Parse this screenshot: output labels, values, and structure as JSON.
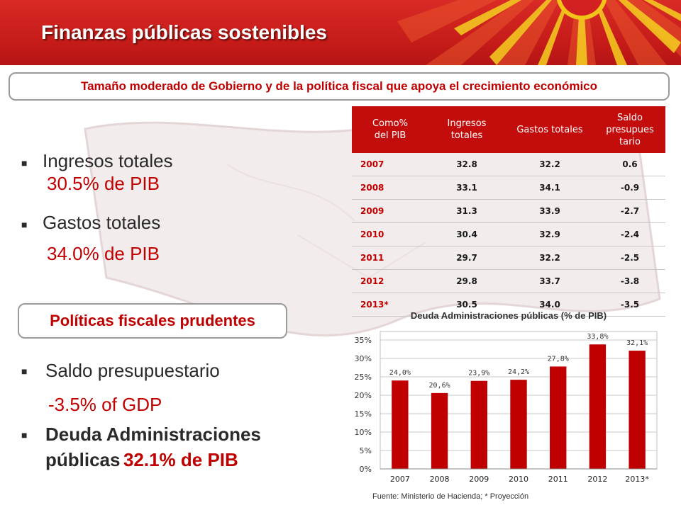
{
  "header": {
    "title": "Finanzas públicas sostenibles"
  },
  "subtitle": "Tamaño moderado de Gobierno y de la política fiscal que apoya el crecimiento económico",
  "bullets_top": [
    {
      "label": "Ingresos totales",
      "value": "30.5% de PIB"
    },
    {
      "label": "Gastos totales",
      "value": "34.0% de PIB"
    }
  ],
  "section_box": "Políticas fiscales prudentes",
  "bullets_bottom": [
    {
      "label": "Saldo presupuestario",
      "value": "-3.5% of GDP"
    },
    {
      "label_line1": "Deuda Administraciones",
      "label_line2": "públicas",
      "value": "32.1% de PIB"
    }
  ],
  "table": {
    "headers": [
      "Como%\ndel PIB",
      "Ingresos\ntotales",
      "Gastos totales",
      "Saldo\npresupues\ntario"
    ],
    "rows": [
      [
        "2007",
        "32.8",
        "32.2",
        "0.6"
      ],
      [
        "2008",
        "33.1",
        "34.1",
        "-0.9"
      ],
      [
        "2009",
        "31.3",
        "33.9",
        "-2.7"
      ],
      [
        "2010",
        "30.4",
        "32.9",
        "-2.4"
      ],
      [
        "2011",
        "29.7",
        "32.2",
        "-2.5"
      ],
      [
        "2012",
        "29.8",
        "33.7",
        "-3.8"
      ],
      [
        "2013*",
        "30.5",
        "34.0",
        "-3.5"
      ]
    ]
  },
  "chart_data": {
    "type": "bar",
    "title": "Deuda Administraciones públicas (% de PIB)",
    "categories": [
      "2007",
      "2008",
      "2009",
      "2010",
      "2011",
      "2012",
      "2013*"
    ],
    "values": [
      24.0,
      20.6,
      23.9,
      24.2,
      27.8,
      33.8,
      32.1
    ],
    "data_labels": [
      "24,0%",
      "20,6%",
      "23,9%",
      "24,2%",
      "27,8%",
      "33,8%",
      "32,1%"
    ],
    "ylim": [
      0,
      35
    ],
    "yticks": [
      "0%",
      "5%",
      "10%",
      "15%",
      "20%",
      "25%",
      "30%",
      "35%"
    ],
    "grid": true,
    "bar_color": "#c00000"
  },
  "source": "Fuente: Ministerio de Hacienda; * Proyección"
}
